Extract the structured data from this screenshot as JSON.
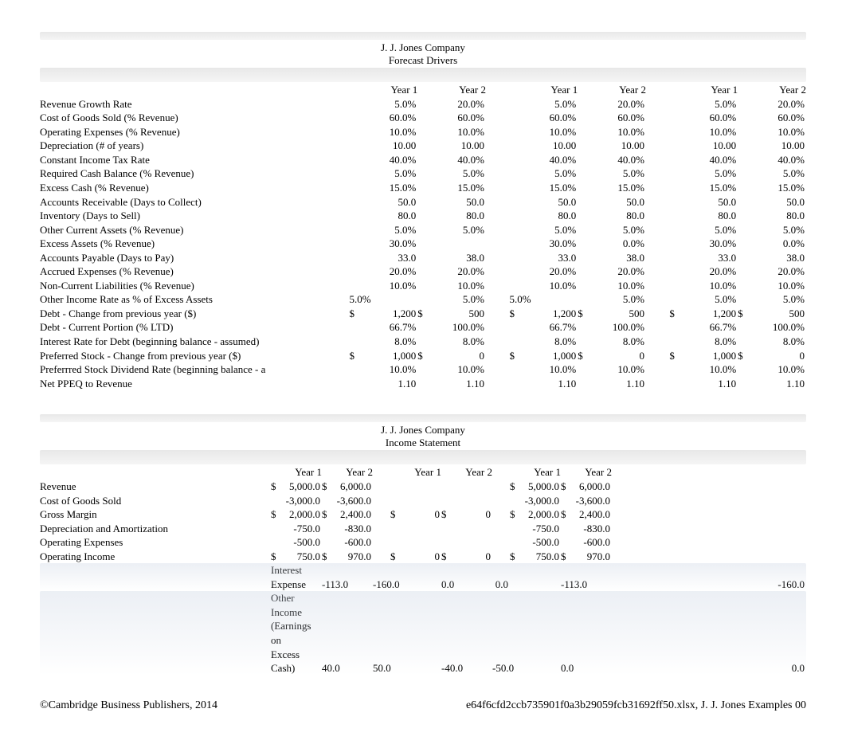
{
  "company": "J. J. Jones Company",
  "sections": {
    "drivers": {
      "subtitle": "Forecast Drivers",
      "headers": [
        "Year 1",
        "Year 2",
        "Year 1",
        "Year 2",
        "Year 1",
        "Year 2"
      ],
      "rows": [
        {
          "label": "Revenue Growth Rate",
          "v": [
            "",
            "5.0%",
            "",
            "20.0%",
            "",
            "5.0%",
            "",
            "20.0%",
            "",
            "5.0%",
            "",
            "20.0%"
          ]
        },
        {
          "label": "Cost of Goods Sold (% Revenue)",
          "v": [
            "",
            "60.0%",
            "",
            "60.0%",
            "",
            "60.0%",
            "",
            "60.0%",
            "",
            "60.0%",
            "",
            "60.0%"
          ]
        },
        {
          "label": "Operating Expenses (% Revenue)",
          "v": [
            "",
            "10.0%",
            "",
            "10.0%",
            "",
            "10.0%",
            "",
            "10.0%",
            "",
            "10.0%",
            "",
            "10.0%"
          ]
        },
        {
          "label": "Depreciation (# of years)",
          "v": [
            "",
            "10.00",
            "",
            "10.00",
            "",
            "10.00",
            "",
            "10.00",
            "",
            "10.00",
            "",
            "10.00"
          ]
        },
        {
          "label": "Constant Income Tax Rate",
          "v": [
            "",
            "40.0%",
            "",
            "40.0%",
            "",
            "40.0%",
            "",
            "40.0%",
            "",
            "40.0%",
            "",
            "40.0%"
          ]
        },
        {
          "label": "Required Cash Balance (% Revenue)",
          "v": [
            "",
            "5.0%",
            "",
            "5.0%",
            "",
            "5.0%",
            "",
            "5.0%",
            "",
            "5.0%",
            "",
            "5.0%"
          ]
        },
        {
          "label": "Excess Cash (% Revenue)",
          "v": [
            "",
            "15.0%",
            "",
            "15.0%",
            "",
            "15.0%",
            "",
            "15.0%",
            "",
            "15.0%",
            "",
            "15.0%"
          ]
        },
        {
          "label": "Accounts Receivable (Days to Collect)",
          "v": [
            "",
            "50.0",
            "",
            "50.0",
            "",
            "50.0",
            "",
            "50.0",
            "",
            "50.0",
            "",
            "50.0"
          ]
        },
        {
          "label": "Inventory (Days to Sell)",
          "v": [
            "",
            "80.0",
            "",
            "80.0",
            "",
            "80.0",
            "",
            "80.0",
            "",
            "80.0",
            "",
            "80.0"
          ]
        },
        {
          "label": "Other Current Assets (% Revenue)",
          "v": [
            "",
            "5.0%",
            "",
            "5.0%",
            "",
            "5.0%",
            "",
            "5.0%",
            "",
            "5.0%",
            "",
            "5.0%"
          ]
        },
        {
          "label": "Excess Assets (% Revenue)",
          "v": [
            "",
            "30.0%",
            "",
            "",
            "",
            "30.0%",
            "",
            "0.0%",
            "",
            "30.0%",
            "",
            "0.0%"
          ]
        },
        {
          "label": "Accounts Payable (Days to Pay)",
          "v": [
            "",
            "33.0",
            "",
            "38.0",
            "",
            "33.0",
            "",
            "38.0",
            "",
            "33.0",
            "",
            "38.0"
          ]
        },
        {
          "label": "Accrued Expenses (% Revenue)",
          "v": [
            "",
            "20.0%",
            "",
            "20.0%",
            "",
            "20.0%",
            "",
            "20.0%",
            "",
            "20.0%",
            "",
            "20.0%"
          ]
        },
        {
          "label": "Non-Current Liabilities (% Revenue)",
          "v": [
            "",
            "10.0%",
            "",
            "10.0%",
            "",
            "10.0%",
            "",
            "10.0%",
            "",
            "10.0%",
            "",
            "10.0%"
          ]
        },
        {
          "label": "Other Income Rate as % of Excess Assets",
          "v": [
            "5.0%",
            "",
            "",
            "5.0%",
            "5.0%",
            "",
            "",
            "5.0%",
            "",
            "5.0%",
            "",
            "5.0%"
          ]
        },
        {
          "label": "Debt  - Change from previous year ($)",
          "v": [
            "$",
            "1,200",
            "$",
            "500",
            "$",
            "1,200",
            "$",
            "500",
            "$",
            "1,200",
            "$",
            "500"
          ]
        },
        {
          "label": "Debt - Current Portion (% LTD)",
          "v": [
            "",
            "66.7%",
            "",
            "100.0%",
            "",
            "66.7%",
            "",
            "100.0%",
            "",
            "66.7%",
            "",
            "100.0%"
          ]
        },
        {
          "label": "Interest Rate for Debt (beginning balance - assumed)",
          "v": [
            "",
            "8.0%",
            "",
            "8.0%",
            "",
            "8.0%",
            "",
            "8.0%",
            "",
            "8.0%",
            "",
            "8.0%"
          ]
        },
        {
          "label": "Preferred Stock  - Change from previous year ($)",
          "v": [
            "$",
            "1,000",
            "$",
            "0",
            "$",
            "1,000",
            "$",
            "0",
            "$",
            "1,000",
            "$",
            "0"
          ]
        },
        {
          "label": "Preferrred Stock Dividend Rate (beginning balance - a",
          "v": [
            "",
            "10.0%",
            "",
            "10.0%",
            "",
            "10.0%",
            "",
            "10.0%",
            "",
            "10.0%",
            "",
            "10.0%"
          ]
        },
        {
          "label": "Net PPEQ to Revenue",
          "v": [
            "",
            "1.10",
            "",
            "1.10",
            "",
            "1.10",
            "",
            "1.10",
            "",
            "1.10",
            "",
            "1.10"
          ]
        }
      ]
    },
    "income": {
      "subtitle": "Income Statement",
      "headers": [
        "Year 1",
        "Year 2",
        "Year 1",
        "Year 2",
        "Year 1",
        "Year 2"
      ],
      "rows": [
        {
          "label": "Revenue",
          "v": [
            "$",
            "5,000.0",
            "$",
            "6,000.0",
            "",
            "",
            "",
            "",
            "$",
            "5,000.0",
            "$",
            "6,000.0"
          ]
        },
        {
          "label": "Cost of Goods Sold",
          "v": [
            "",
            "-3,000.0",
            "",
            "-3,600.0",
            "",
            "",
            "",
            "",
            "",
            "-3,000.0",
            "",
            "-3,600.0"
          ]
        },
        {
          "label": "Gross Margin",
          "v": [
            "$",
            "2,000.0",
            "$",
            "2,400.0",
            "$",
            "0",
            "$",
            "0",
            "$",
            "2,000.0",
            "$",
            "2,400.0"
          ]
        },
        {
          "label": "Depreciation and Amortization",
          "v": [
            "",
            "-750.0",
            "",
            "-830.0",
            "",
            "",
            "",
            "",
            "",
            "-750.0",
            "",
            "-830.0"
          ]
        },
        {
          "label": "Operating Expenses",
          "v": [
            "",
            "-500.0",
            "",
            "-600.0",
            "",
            "",
            "",
            "",
            "",
            "-500.0",
            "",
            "-600.0"
          ]
        },
        {
          "label": "Operating Income",
          "v": [
            "$",
            "750.0",
            "$",
            "970.0",
            "$",
            "0",
            "$",
            "0",
            "$",
            "750.0",
            "$",
            "970.0"
          ]
        },
        {
          "label": "Interest Expense",
          "v": [
            "",
            "-113.0",
            "",
            "-160.0",
            "",
            "0.0",
            "",
            "0.0",
            "",
            "-113.0",
            "",
            "-160.0"
          ],
          "stripe": true
        },
        {
          "label": "Other Income (Earnings on Excess Cash)",
          "v": [
            "",
            "40.0",
            "",
            "50.0",
            "",
            "-40.0",
            "",
            "-50.0",
            "",
            "0.0",
            "",
            "0.0"
          ],
          "stripe": true
        }
      ]
    }
  },
  "footer": {
    "left": "©Cambridge Business Publishers, 2014",
    "right": "e64f6cfd2ccb735901f0a3b29059fcb31692ff50.xlsx, J. J. Jones Examples 00"
  },
  "colors": {
    "bar_gradient_top": "#e8e8e8",
    "bar_gradient_bottom": "#f5f5f5",
    "stripe_tint": "rgba(200,210,225,0.35)",
    "text": "#000000",
    "background": "#ffffff"
  }
}
